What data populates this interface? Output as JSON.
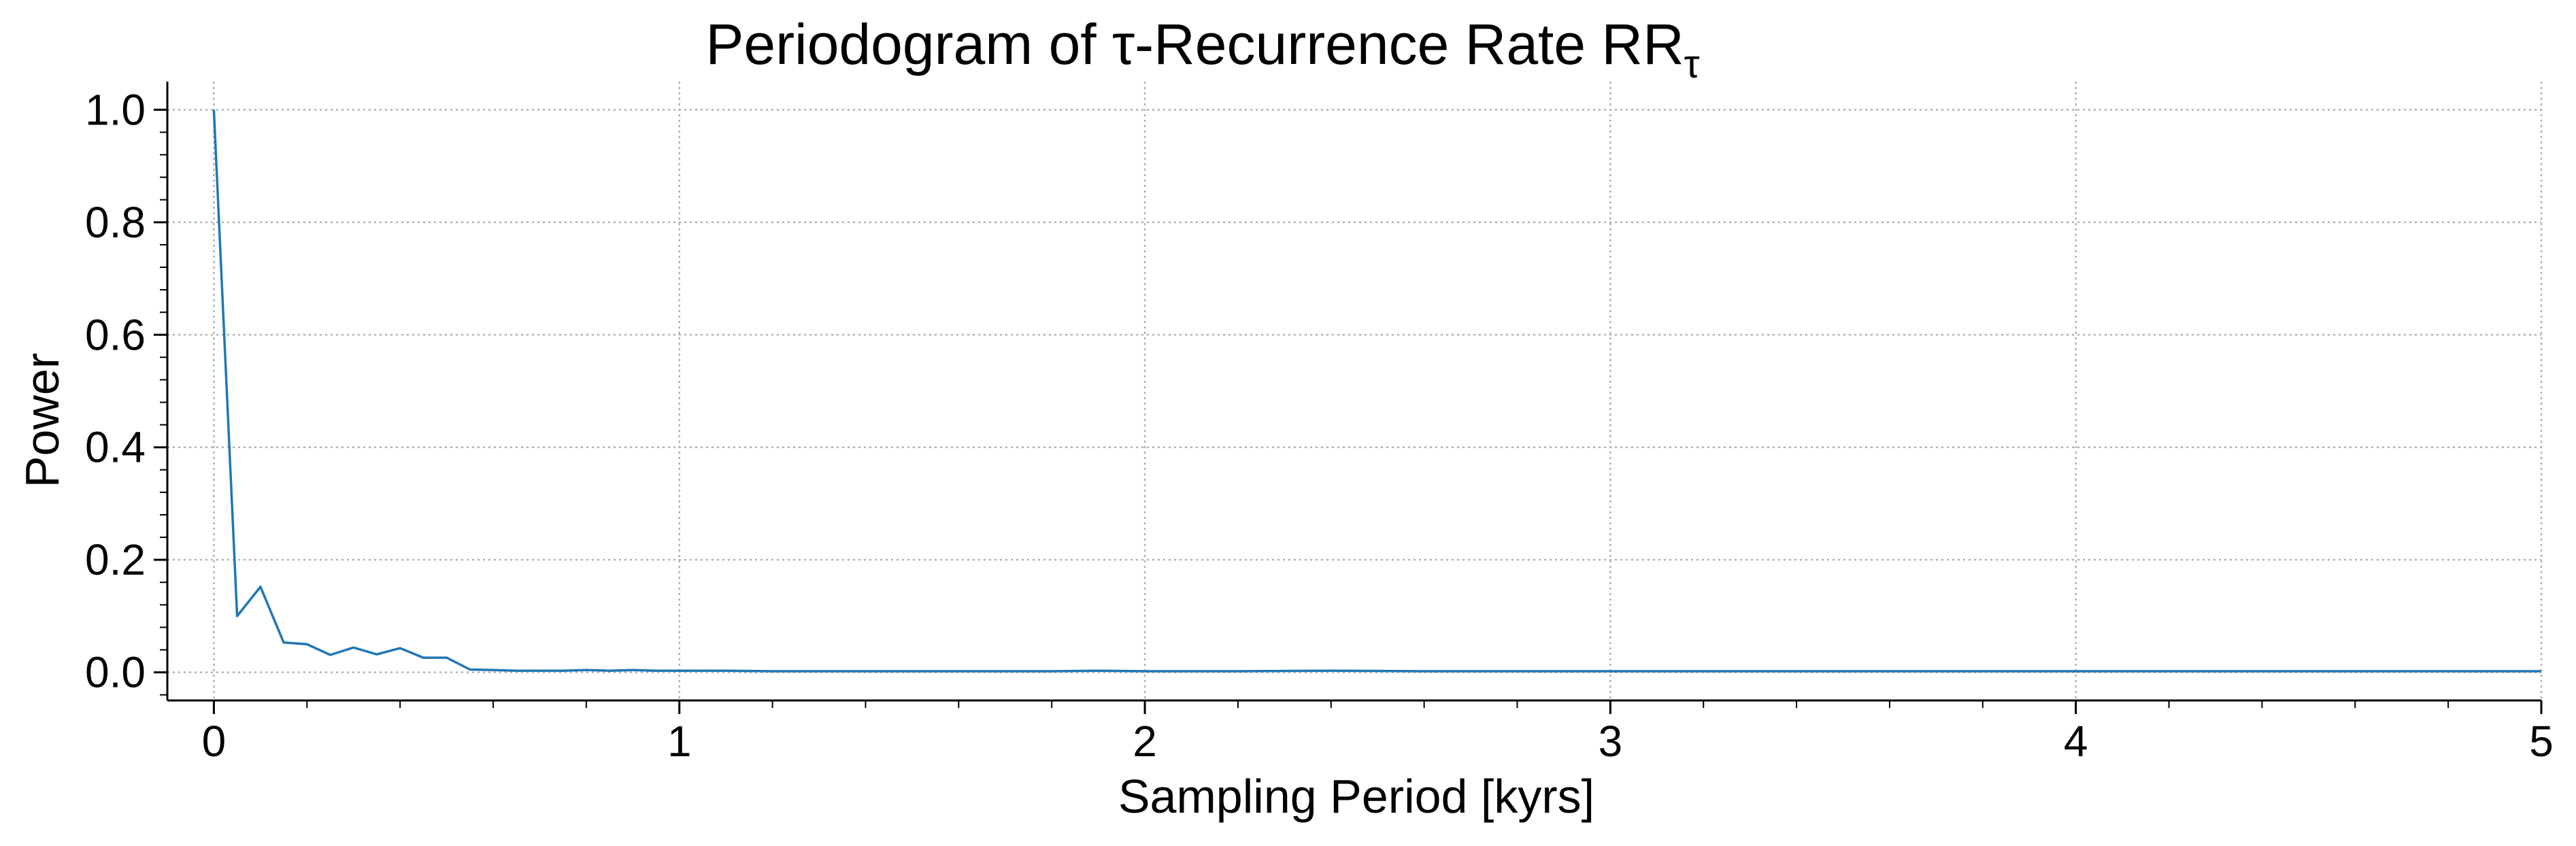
{
  "chart_data": {
    "type": "line",
    "title": "Periodogram of τ-Recurrence Rate RR",
    "title_subscript": "τ",
    "xlabel": "Sampling Period [kyrs]",
    "ylabel": "Power",
    "xlim": [
      -0.1,
      5
    ],
    "ylim": [
      -0.05,
      1.05
    ],
    "xticks": [
      0,
      1,
      2,
      3,
      4,
      5
    ],
    "xtick_labels": [
      "0",
      "1",
      "2",
      "3",
      "4",
      "5"
    ],
    "yticks": [
      0.0,
      0.2,
      0.4,
      0.6,
      0.8,
      1.0
    ],
    "ytick_labels": [
      "0.0",
      "0.2",
      "0.4",
      "0.6",
      "0.8",
      "1.0"
    ],
    "grid": true,
    "line_color": "#1f77b4",
    "series": [
      {
        "x": [
          0.0,
          0.05,
          0.1,
          0.15,
          0.2,
          0.25,
          0.3,
          0.35,
          0.4,
          0.45,
          0.5,
          0.55,
          0.6,
          0.65,
          0.7,
          0.75,
          0.8,
          0.85,
          0.9,
          0.95,
          1.0,
          1.1,
          1.2,
          1.5,
          1.8,
          1.9,
          2.0,
          2.2,
          2.4,
          2.6,
          3.0,
          3.5,
          4.0,
          4.5,
          5.0
        ],
        "values": [
          1.0,
          0.1,
          0.152,
          0.053,
          0.05,
          0.031,
          0.044,
          0.032,
          0.043,
          0.026,
          0.026,
          0.005,
          0.004,
          0.003,
          0.003,
          0.003,
          0.004,
          0.003,
          0.004,
          0.003,
          0.003,
          0.003,
          0.002,
          0.002,
          0.002,
          0.003,
          0.002,
          0.002,
          0.003,
          0.002,
          0.002,
          0.002,
          0.002,
          0.002,
          0.002
        ]
      }
    ]
  }
}
